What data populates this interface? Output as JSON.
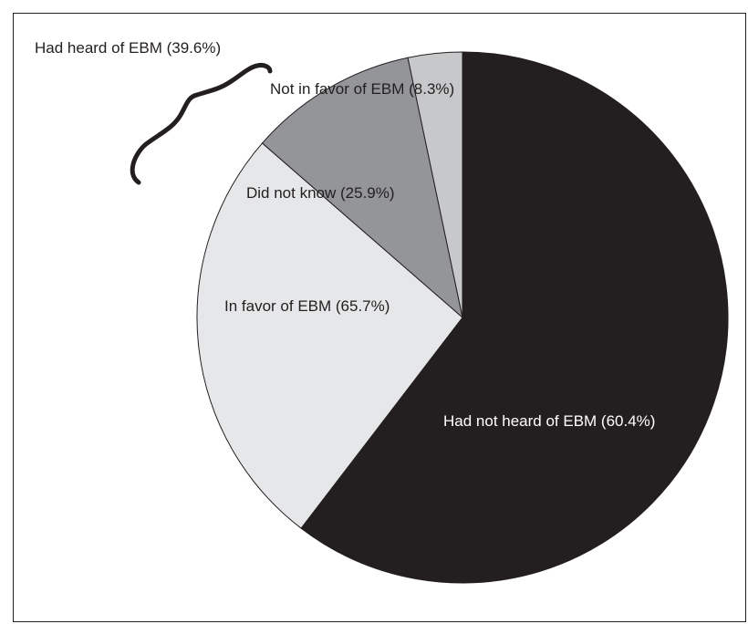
{
  "chart_data": {
    "type": "pie",
    "title": "",
    "start_angle_deg": -90,
    "direction": "clockwise",
    "slices": [
      {
        "label": "Had not heard of EBM (60.4%)",
        "value": 60.4,
        "color": "#231f20",
        "text_color": "#ffffff"
      },
      {
        "label": "In favor of EBM (65.7%)",
        "value": 26.0,
        "color": "#e6e7e8",
        "text_color": "#231f20"
      },
      {
        "label": "Did not know (25.9%)",
        "value": 10.3,
        "color": "#939598",
        "text_color": "#231f20"
      },
      {
        "label": "Not in favor of EBM (8.3%)",
        "value": 3.3,
        "color": "#c7c8ca",
        "text_color": "#231f20"
      }
    ],
    "group_annotation": {
      "label": "Had heard of EBM (39.6%)",
      "text_color": "#231f20"
    },
    "edge_color": "#231f20"
  }
}
